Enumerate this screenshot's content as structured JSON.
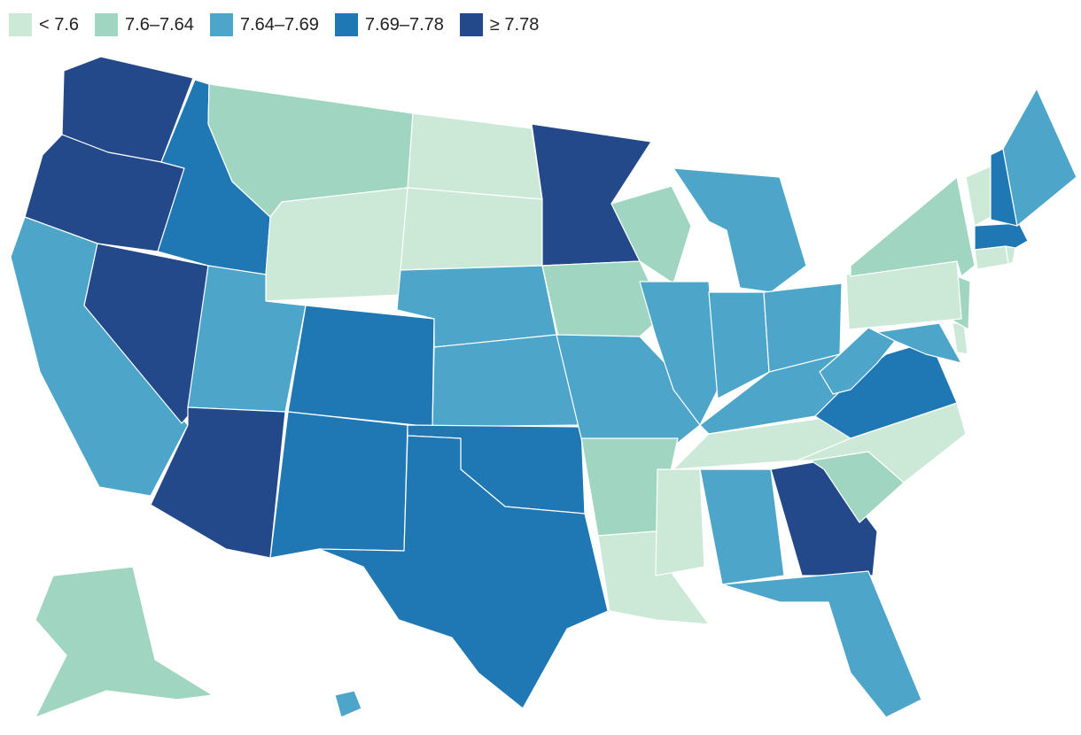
{
  "legend": {
    "bins": [
      {
        "label": "< 7.6",
        "color": "#cce9d7"
      },
      {
        "label": "7.6–7.64",
        "color": "#9fd5c1"
      },
      {
        "label": "7.64–7.69",
        "color": "#4da6c9"
      },
      {
        "label": "7.69–7.78",
        "color": "#1f77b4"
      },
      {
        "label": "≥ 7.78",
        "color": "#24498a"
      }
    ]
  },
  "map": {
    "region": "United States",
    "states": [
      {
        "id": "WA",
        "bin": 4
      },
      {
        "id": "OR",
        "bin": 4
      },
      {
        "id": "CA",
        "bin": 2
      },
      {
        "id": "NV",
        "bin": 4
      },
      {
        "id": "ID",
        "bin": 3
      },
      {
        "id": "MT",
        "bin": 1
      },
      {
        "id": "WY",
        "bin": 0
      },
      {
        "id": "UT",
        "bin": 2
      },
      {
        "id": "AZ",
        "bin": 4
      },
      {
        "id": "CO",
        "bin": 3
      },
      {
        "id": "NM",
        "bin": 3
      },
      {
        "id": "ND",
        "bin": 0
      },
      {
        "id": "SD",
        "bin": 0
      },
      {
        "id": "NE",
        "bin": 2
      },
      {
        "id": "KS",
        "bin": 2
      },
      {
        "id": "OK",
        "bin": 3
      },
      {
        "id": "TX",
        "bin": 3
      },
      {
        "id": "MN",
        "bin": 4
      },
      {
        "id": "IA",
        "bin": 1
      },
      {
        "id": "MO",
        "bin": 2
      },
      {
        "id": "AR",
        "bin": 1
      },
      {
        "id": "LA",
        "bin": 0
      },
      {
        "id": "WI",
        "bin": 1
      },
      {
        "id": "IL",
        "bin": 2
      },
      {
        "id": "MI",
        "bin": 2
      },
      {
        "id": "IN",
        "bin": 2
      },
      {
        "id": "OH",
        "bin": 2
      },
      {
        "id": "KY",
        "bin": 2
      },
      {
        "id": "TN",
        "bin": 0
      },
      {
        "id": "MS",
        "bin": 0
      },
      {
        "id": "AL",
        "bin": 2
      },
      {
        "id": "GA",
        "bin": 4
      },
      {
        "id": "FL",
        "bin": 2
      },
      {
        "id": "SC",
        "bin": 1
      },
      {
        "id": "NC",
        "bin": 0
      },
      {
        "id": "VA",
        "bin": 3
      },
      {
        "id": "WV",
        "bin": 2
      },
      {
        "id": "MD",
        "bin": 2
      },
      {
        "id": "DE",
        "bin": 0
      },
      {
        "id": "NJ",
        "bin": 1
      },
      {
        "id": "PA",
        "bin": 0
      },
      {
        "id": "NY",
        "bin": 1
      },
      {
        "id": "CT",
        "bin": 0
      },
      {
        "id": "RI",
        "bin": 0
      },
      {
        "id": "MA",
        "bin": 3
      },
      {
        "id": "VT",
        "bin": 0
      },
      {
        "id": "NH",
        "bin": 3
      },
      {
        "id": "ME",
        "bin": 2
      },
      {
        "id": "AK",
        "bin": 1
      },
      {
        "id": "HI",
        "bin": 2
      }
    ]
  }
}
